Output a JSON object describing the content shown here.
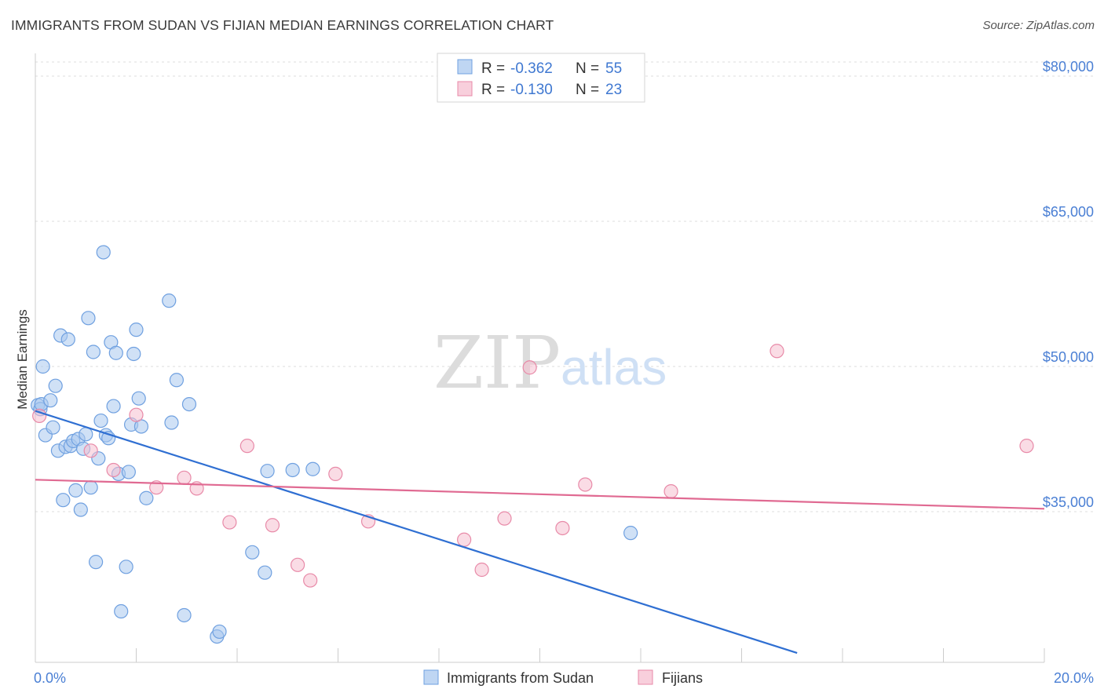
{
  "title": "IMMIGRANTS FROM SUDAN VS FIJIAN MEDIAN EARNINGS CORRELATION CHART",
  "source": "Source: ZipAtlas.com",
  "watermark": {
    "zip": "ZIP",
    "atlas": "atlas"
  },
  "legend_stats": [
    {
      "r_label": "R =",
      "r_value": "-0.362",
      "n_label": "N =",
      "n_value": "55",
      "color": "#aac8ef",
      "stroke": "#6fa0e0"
    },
    {
      "r_label": "R =",
      "r_value": "-0.130",
      "n_label": "N =",
      "n_value": "23",
      "color": "#f6bfd0",
      "stroke": "#e88aa8"
    }
  ],
  "chart_data": {
    "type": "scatter",
    "title": "IMMIGRANTS FROM SUDAN VS FIJIAN MEDIAN EARNINGS CORRELATION CHART",
    "xlabel": "",
    "ylabel": "Median Earnings",
    "x_unit": "%",
    "xlim": [
      0,
      20.0
    ],
    "ylim": [
      20000,
      84000
    ],
    "x_tick_labels": [
      "0.0%",
      "20.0%"
    ],
    "y_ticks": [
      35000,
      50000,
      65000,
      80000
    ],
    "y_tick_labels": [
      "$35,000",
      "$50,000",
      "$65,000",
      "$80,000"
    ],
    "grid": true,
    "legend_position": "bottom-center",
    "series": [
      {
        "name": "Immigrants from Sudan",
        "color": "#aac8ef",
        "stroke": "#6fa0e0",
        "line_color": "#2f6fd2",
        "trend": {
          "x": [
            0.0,
            15.1
          ],
          "y": [
            45400,
            20400
          ]
        },
        "points": [
          {
            "x": 0.05,
            "y": 46000
          },
          {
            "x": 0.1,
            "y": 45600
          },
          {
            "x": 0.12,
            "y": 46100
          },
          {
            "x": 0.15,
            "y": 50000
          },
          {
            "x": 0.2,
            "y": 42900
          },
          {
            "x": 0.3,
            "y": 46500
          },
          {
            "x": 0.35,
            "y": 43700
          },
          {
            "x": 0.4,
            "y": 48000
          },
          {
            "x": 0.45,
            "y": 41300
          },
          {
            "x": 0.5,
            "y": 53200
          },
          {
            "x": 0.55,
            "y": 36200
          },
          {
            "x": 0.6,
            "y": 41700
          },
          {
            "x": 0.65,
            "y": 52800
          },
          {
            "x": 0.7,
            "y": 41800
          },
          {
            "x": 0.75,
            "y": 42300
          },
          {
            "x": 0.8,
            "y": 37200
          },
          {
            "x": 0.85,
            "y": 42500
          },
          {
            "x": 0.9,
            "y": 35200
          },
          {
            "x": 0.95,
            "y": 41500
          },
          {
            "x": 1.0,
            "y": 43000
          },
          {
            "x": 1.05,
            "y": 55000
          },
          {
            "x": 1.1,
            "y": 37500
          },
          {
            "x": 1.15,
            "y": 51500
          },
          {
            "x": 1.2,
            "y": 29800
          },
          {
            "x": 1.25,
            "y": 40500
          },
          {
            "x": 1.3,
            "y": 44400
          },
          {
            "x": 1.35,
            "y": 61800
          },
          {
            "x": 1.4,
            "y": 42900
          },
          {
            "x": 1.45,
            "y": 42600
          },
          {
            "x": 1.5,
            "y": 52500
          },
          {
            "x": 1.55,
            "y": 45900
          },
          {
            "x": 1.6,
            "y": 51400
          },
          {
            "x": 1.65,
            "y": 38900
          },
          {
            "x": 1.7,
            "y": 24700
          },
          {
            "x": 1.8,
            "y": 29300
          },
          {
            "x": 1.85,
            "y": 39100
          },
          {
            "x": 1.9,
            "y": 44000
          },
          {
            "x": 1.95,
            "y": 51300
          },
          {
            "x": 2.0,
            "y": 53800
          },
          {
            "x": 2.05,
            "y": 46700
          },
          {
            "x": 2.1,
            "y": 43800
          },
          {
            "x": 2.2,
            "y": 36400
          },
          {
            "x": 2.65,
            "y": 56800
          },
          {
            "x": 2.7,
            "y": 44200
          },
          {
            "x": 2.8,
            "y": 48600
          },
          {
            "x": 2.95,
            "y": 24300
          },
          {
            "x": 3.05,
            "y": 46100
          },
          {
            "x": 3.6,
            "y": 22100
          },
          {
            "x": 3.65,
            "y": 22600
          },
          {
            "x": 4.3,
            "y": 30800
          },
          {
            "x": 4.55,
            "y": 28700
          },
          {
            "x": 4.6,
            "y": 39200
          },
          {
            "x": 5.1,
            "y": 39300
          },
          {
            "x": 5.5,
            "y": 39400
          },
          {
            "x": 11.8,
            "y": 32800
          }
        ]
      },
      {
        "name": "Fijians",
        "color": "#f6bfd0",
        "stroke": "#e88aa8",
        "line_color": "#e06a92",
        "trend": {
          "x": [
            0.0,
            20.0
          ],
          "y": [
            38300,
            35300
          ]
        },
        "points": [
          {
            "x": 0.08,
            "y": 44900
          },
          {
            "x": 1.1,
            "y": 41300
          },
          {
            "x": 1.55,
            "y": 39300
          },
          {
            "x": 2.0,
            "y": 45000
          },
          {
            "x": 2.4,
            "y": 37500
          },
          {
            "x": 2.95,
            "y": 38500
          },
          {
            "x": 3.2,
            "y": 37400
          },
          {
            "x": 3.85,
            "y": 33900
          },
          {
            "x": 4.2,
            "y": 41800
          },
          {
            "x": 4.7,
            "y": 33600
          },
          {
            "x": 5.2,
            "y": 29500
          },
          {
            "x": 5.45,
            "y": 27900
          },
          {
            "x": 5.95,
            "y": 38900
          },
          {
            "x": 6.6,
            "y": 34000
          },
          {
            "x": 8.5,
            "y": 32100
          },
          {
            "x": 8.85,
            "y": 29000
          },
          {
            "x": 9.3,
            "y": 34300
          },
          {
            "x": 9.8,
            "y": 49900
          },
          {
            "x": 10.45,
            "y": 33300
          },
          {
            "x": 10.9,
            "y": 37800
          },
          {
            "x": 12.6,
            "y": 37100
          },
          {
            "x": 14.7,
            "y": 51600
          },
          {
            "x": 19.65,
            "y": 41800
          }
        ]
      }
    ]
  }
}
